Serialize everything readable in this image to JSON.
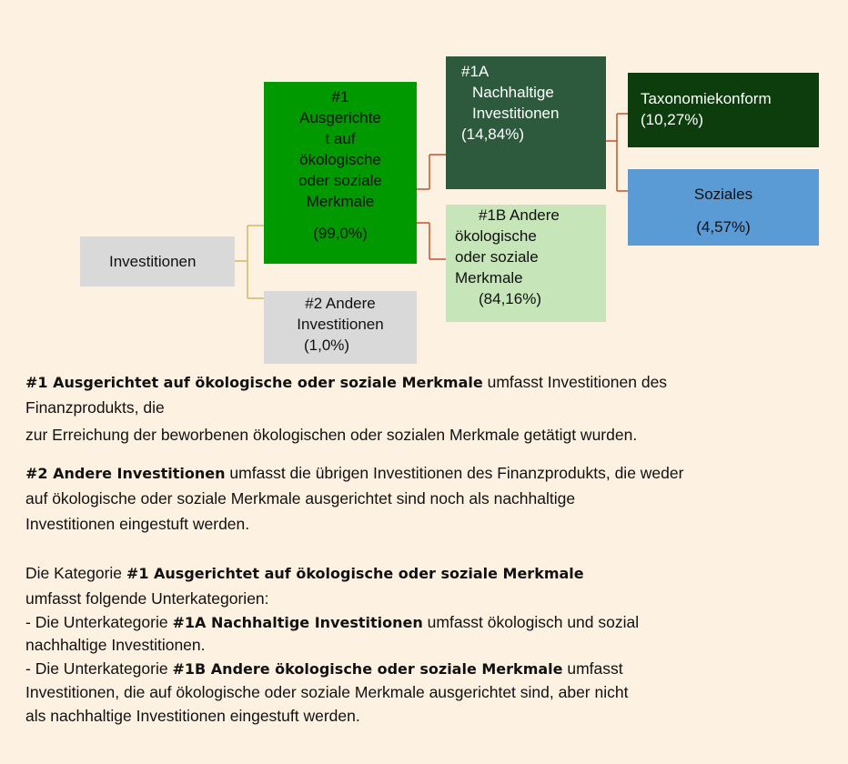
{
  "diagram": {
    "nodes": [
      {
        "label": [
          "Investitionen"
        ]
      },
      {
        "label": [
          "#1",
          "Ausgerichte",
          "t auf",
          "ökologische",
          "oder soziale",
          "Merkmale"
        ],
        "share": "(99,0%)"
      },
      {
        "label": [
          "#2 Andere",
          "Investitionen"
        ],
        "share": "(1,0%)"
      },
      {
        "label": [
          "#1A",
          "Nachhaltige",
          "Investitionen"
        ],
        "share": "(14,84%)"
      },
      {
        "label": [
          "#1B Andere",
          "ökologische",
          "oder soziale",
          "Merkmale"
        ],
        "share": "(84,16%)"
      },
      {
        "label": [
          "Taxonomiekonform"
        ],
        "share": "(10,27%)"
      },
      {
        "label": [
          "Soziales"
        ],
        "share": "(4,57%)"
      }
    ]
  },
  "description": {
    "lines": [
      {
        "bold": "#1 Ausgerichtet auf ökologische oder soziale Merkmale",
        "after": "umfasst Investitionen des"
      },
      {
        "text": "Finanzprodukts, die"
      },
      {
        "text": "zur Erreichung der beworbenen ökologischen oder sozialen Merkmale getätigt wurden."
      },
      {
        "bold": "#2 Andere Investitionen",
        "after": "umfasst die übrigen Investitionen des Finanzprodukts, die weder"
      },
      {
        "text": "auf ökologische oder soziale Merkmale ausgerichtet sind noch als nachhaltige"
      },
      {
        "text": "Investitionen eingestuft werden."
      },
      {
        "before": "Die Kategorie",
        "bold": "#1 Ausgerichtet auf ökologische oder soziale Merkmale"
      },
      {
        "text": "umfasst folgende Unterkategorien:"
      },
      {
        "before": "- Die Unterkategorie",
        "bold": "#1A Nachhaltige Investitionen",
        "after": "umfasst ökologisch und sozial"
      },
      {
        "text": "nachhaltige Investitionen."
      },
      {
        "before": "- Die Unterkategorie",
        "bold": "#1B Andere ökologische oder soziale Merkmale",
        "after": "umfasst"
      },
      {
        "text": "Investitionen, die auf ökologische oder soziale Merkmale ausgerichtet sind, aber nicht"
      },
      {
        "text": "als nachhaltige Investitionen eingestuft werden."
      }
    ]
  }
}
